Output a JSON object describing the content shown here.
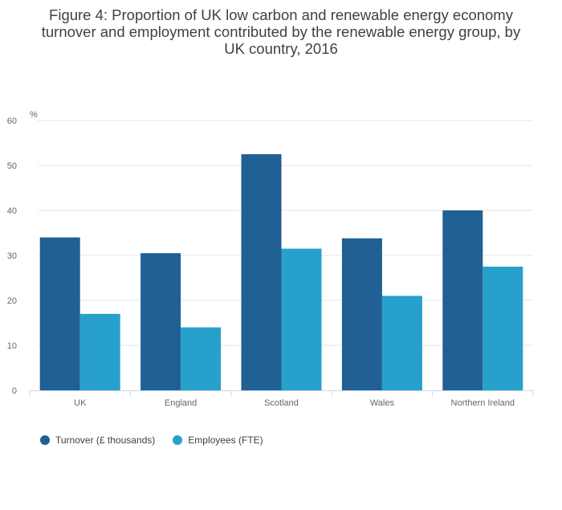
{
  "title_lines": [
    "Figure 4: Proportion of UK low carbon and renewable energy economy",
    "turnover and employment contributed by the renewable energy group, by",
    "UK country, 2016"
  ],
  "colors": {
    "turnover": "#206095",
    "employees": "#27a0cc",
    "grid": "#e6e6e6",
    "axis": "#ccd6eb"
  },
  "chart_data": {
    "type": "bar",
    "title": "Figure 4: Proportion of UK low carbon and renewable energy economy turnover and employment contributed by the renewable energy group, by UK country, 2016",
    "ylabel": "%",
    "xlabel": "",
    "ylim": [
      0,
      60
    ],
    "yticks": [
      0,
      10,
      20,
      30,
      40,
      50,
      60
    ],
    "grid": true,
    "legend_position": "bottom-left",
    "categories": [
      "UK",
      "England",
      "Scotland",
      "Wales",
      "Northern Ireland"
    ],
    "series": [
      {
        "name": "Turnover (£ thousands)",
        "values": [
          34.0,
          30.5,
          52.5,
          33.8,
          40.0
        ]
      },
      {
        "name": "Employees (FTE)",
        "values": [
          17.0,
          14.0,
          31.5,
          21.0,
          27.5
        ]
      }
    ]
  }
}
